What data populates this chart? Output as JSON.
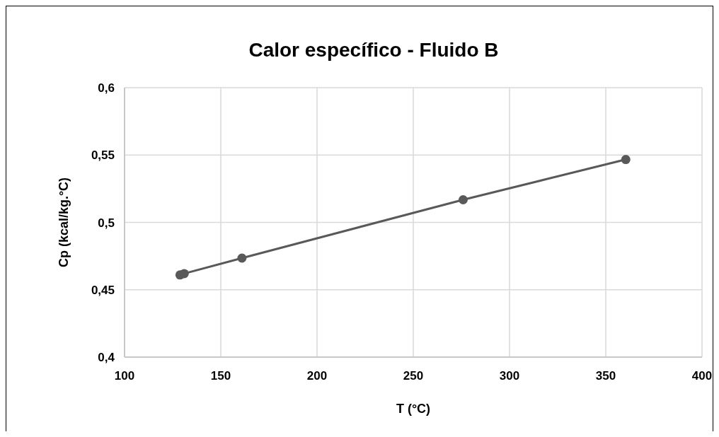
{
  "chart_data": {
    "type": "line",
    "title": "Calor específico - Fluido B",
    "xlabel": "T (°C)",
    "ylabel": "Cp (kcal/kg.°C)",
    "x": [
      128.8,
      131,
      161,
      275.9,
      360.4
    ],
    "series": [
      {
        "color": "#595959",
        "values": [
          0.461,
          0.462,
          0.4735,
          0.5168,
          0.5467
        ]
      }
    ],
    "xlim": [
      100,
      400
    ],
    "xticks": [
      100,
      150,
      200,
      250,
      300,
      350,
      400
    ],
    "ylim": [
      0.4,
      0.6
    ],
    "yticks": [
      {
        "value": 0.4,
        "label": "0,4"
      },
      {
        "value": 0.45,
        "label": "0,45"
      },
      {
        "value": 0.5,
        "label": "0,5"
      },
      {
        "value": 0.55,
        "label": "0,55"
      },
      {
        "value": 0.6,
        "label": "0,6"
      }
    ],
    "grid": true,
    "marker": "circle",
    "line_style": "solid"
  }
}
